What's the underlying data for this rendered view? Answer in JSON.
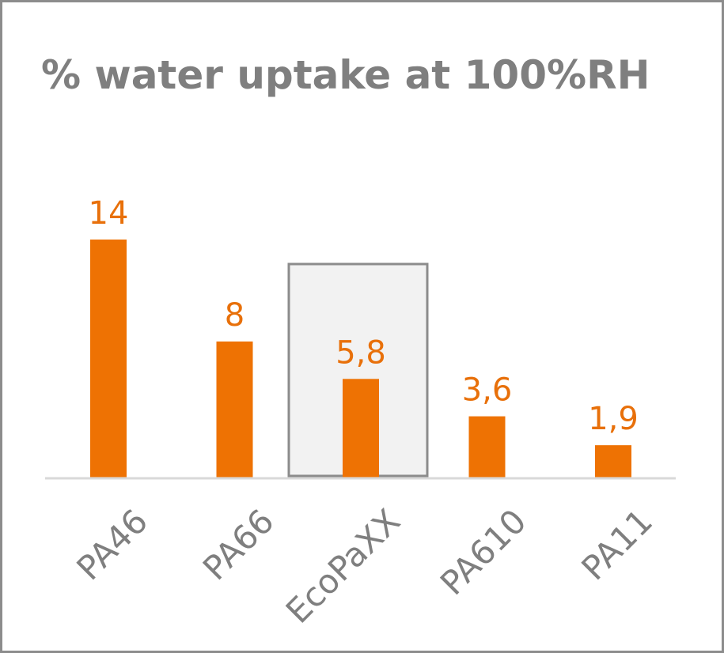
{
  "chart_data": {
    "type": "bar",
    "title": "% water uptake at 100%RH",
    "categories": [
      "PA46",
      "PA66",
      "EcoPaXX",
      "PA610",
      "PA11"
    ],
    "values": [
      14,
      8,
      5.8,
      3.6,
      1.9
    ],
    "data_labels": [
      "14",
      "8",
      "5,8",
      "3,6",
      "1,9"
    ],
    "highlighted_category": "EcoPaXX",
    "ylim": [
      0,
      14
    ],
    "grid": false,
    "legend": "none",
    "colors": {
      "bar": "#ee7203",
      "label": "#e8700a",
      "axis": "#d9d9d9",
      "highlight_fill": "#f2f2f2",
      "highlight_border": "#8c8c8c",
      "text": "#7f7f7f"
    }
  }
}
